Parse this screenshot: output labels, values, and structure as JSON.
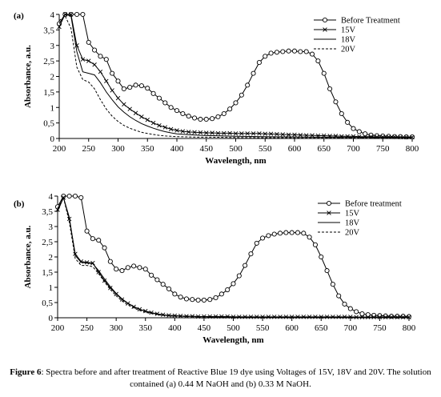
{
  "caption": {
    "label": "Figure 6",
    "text": ": Spectra before and after treatment of Reactive Blue 19 dye using Voltages of 15V, 18V and 20V. The solution contained (a) 0.44 M NaOH and (b) 0.33 M NaOH."
  },
  "chart_data": [
    {
      "type": "line",
      "panel_label": "(a)",
      "xlabel": "Wavelength, nm",
      "ylabel": "Absorbance, a.u.",
      "xlim": [
        200,
        800
      ],
      "ylim": [
        0,
        4
      ],
      "xticks": [
        200,
        250,
        300,
        350,
        400,
        450,
        500,
        550,
        600,
        650,
        700,
        750,
        800
      ],
      "yticks": [
        0,
        0.5,
        1,
        1.5,
        2,
        2.5,
        3,
        3.5,
        4
      ],
      "ytick_labels": [
        "0",
        "0,5",
        "1",
        "1,5",
        "2",
        "2,5",
        "3",
        "3,5",
        "4"
      ],
      "grid": false,
      "legend": "top-right",
      "series": [
        {
          "name": "Before Treatment",
          "style": "circle-markers",
          "x": [
            200,
            210,
            220,
            230,
            240,
            250,
            260,
            270,
            280,
            290,
            300,
            310,
            320,
            330,
            340,
            350,
            360,
            370,
            380,
            390,
            400,
            410,
            420,
            430,
            440,
            450,
            460,
            470,
            480,
            490,
            500,
            510,
            520,
            530,
            540,
            550,
            560,
            570,
            580,
            590,
            600,
            610,
            620,
            630,
            640,
            650,
            660,
            670,
            680,
            690,
            700,
            710,
            720,
            730,
            740,
            750,
            760,
            770,
            780,
            790,
            800
          ],
          "y": [
            3.7,
            4.0,
            4.0,
            4.0,
            4.0,
            3.1,
            2.85,
            2.65,
            2.55,
            2.1,
            1.85,
            1.6,
            1.65,
            1.72,
            1.7,
            1.62,
            1.45,
            1.3,
            1.15,
            1.0,
            0.9,
            0.8,
            0.72,
            0.66,
            0.62,
            0.62,
            0.64,
            0.7,
            0.8,
            0.95,
            1.15,
            1.4,
            1.72,
            2.1,
            2.45,
            2.65,
            2.75,
            2.78,
            2.8,
            2.82,
            2.82,
            2.8,
            2.8,
            2.72,
            2.5,
            2.1,
            1.6,
            1.18,
            0.8,
            0.52,
            0.32,
            0.22,
            0.15,
            0.11,
            0.09,
            0.08,
            0.07,
            0.06,
            0.06,
            0.05,
            0.05
          ]
        },
        {
          "name": "15V",
          "style": "x-markers",
          "x": [
            200,
            210,
            220,
            230,
            240,
            250,
            260,
            270,
            280,
            290,
            300,
            310,
            320,
            330,
            340,
            350,
            360,
            370,
            380,
            390,
            400,
            410,
            420,
            430,
            440,
            450,
            460,
            470,
            480,
            490,
            500,
            510,
            520,
            530,
            540,
            550,
            560,
            570,
            580,
            590,
            600,
            610,
            620,
            630,
            640,
            650,
            660,
            670,
            680,
            690,
            700,
            710,
            720,
            730,
            740,
            750,
            760,
            770,
            780,
            790,
            800
          ],
          "y": [
            3.6,
            4.0,
            4.0,
            3.0,
            2.55,
            2.5,
            2.38,
            2.15,
            1.85,
            1.55,
            1.3,
            1.1,
            0.95,
            0.82,
            0.7,
            0.6,
            0.5,
            0.42,
            0.36,
            0.3,
            0.26,
            0.23,
            0.21,
            0.2,
            0.19,
            0.18,
            0.18,
            0.17,
            0.17,
            0.17,
            0.16,
            0.16,
            0.16,
            0.16,
            0.16,
            0.15,
            0.15,
            0.14,
            0.13,
            0.12,
            0.12,
            0.11,
            0.1,
            0.1,
            0.09,
            0.09,
            0.08,
            0.08,
            0.07,
            0.07,
            0.07,
            0.06,
            0.06,
            0.06,
            0.05,
            0.05,
            0.05,
            0.05,
            0.04,
            0.04,
            0.04
          ]
        },
        {
          "name": "18V",
          "style": "solid",
          "x": [
            200,
            210,
            220,
            230,
            240,
            250,
            260,
            270,
            280,
            290,
            300,
            310,
            320,
            330,
            340,
            350,
            360,
            370,
            380,
            390,
            400,
            420,
            440,
            460,
            480,
            500,
            550,
            600,
            650,
            700,
            750,
            800
          ],
          "y": [
            3.7,
            4.0,
            3.95,
            2.8,
            2.15,
            2.1,
            2.05,
            1.8,
            1.5,
            1.25,
            1.02,
            0.85,
            0.7,
            0.58,
            0.48,
            0.4,
            0.33,
            0.27,
            0.22,
            0.18,
            0.15,
            0.12,
            0.1,
            0.09,
            0.08,
            0.07,
            0.06,
            0.05,
            0.04,
            0.04,
            0.03,
            0.03
          ]
        },
        {
          "name": "20V",
          "style": "dashed",
          "x": [
            200,
            210,
            220,
            230,
            240,
            250,
            260,
            270,
            280,
            290,
            300,
            310,
            320,
            330,
            340,
            350,
            360,
            370,
            380,
            390,
            400,
            420,
            440,
            460,
            500,
            600,
            700,
            800
          ],
          "y": [
            3.8,
            3.95,
            3.55,
            2.3,
            1.9,
            1.82,
            1.6,
            1.25,
            0.95,
            0.72,
            0.55,
            0.42,
            0.33,
            0.26,
            0.2,
            0.16,
            0.13,
            0.1,
            0.08,
            0.07,
            0.06,
            0.05,
            0.04,
            0.04,
            0.03,
            0.02,
            0.02,
            0.02
          ]
        }
      ]
    },
    {
      "type": "line",
      "panel_label": "(b)",
      "xlabel": "Wavelength, nm",
      "ylabel": "Absorbance, a.u.",
      "xlim": [
        200,
        800
      ],
      "ylim": [
        0,
        4
      ],
      "xticks": [
        200,
        250,
        300,
        350,
        400,
        450,
        500,
        550,
        600,
        650,
        700,
        750,
        800
      ],
      "yticks": [
        0,
        0.5,
        1,
        1.5,
        2,
        2.5,
        3,
        3.5,
        4
      ],
      "ytick_labels": [
        "0",
        "0,5",
        "1",
        "1,5",
        "2",
        "2,5",
        "3",
        "3,5",
        "4"
      ],
      "grid": false,
      "legend": "top-right",
      "series": [
        {
          "name": "Before treatment",
          "style": "circle-markers",
          "x": [
            200,
            210,
            220,
            230,
            240,
            250,
            260,
            270,
            280,
            290,
            300,
            310,
            320,
            330,
            340,
            350,
            360,
            370,
            380,
            390,
            400,
            410,
            420,
            430,
            440,
            450,
            460,
            470,
            480,
            490,
            500,
            510,
            520,
            530,
            540,
            550,
            560,
            570,
            580,
            590,
            600,
            610,
            620,
            630,
            640,
            650,
            660,
            670,
            680,
            690,
            700,
            710,
            720,
            730,
            740,
            750,
            760,
            770,
            780,
            790,
            800
          ],
          "y": [
            3.65,
            4.0,
            4.0,
            4.0,
            3.95,
            2.85,
            2.6,
            2.55,
            2.3,
            1.85,
            1.6,
            1.55,
            1.65,
            1.7,
            1.65,
            1.6,
            1.4,
            1.25,
            1.1,
            0.95,
            0.78,
            0.68,
            0.62,
            0.6,
            0.58,
            0.58,
            0.6,
            0.66,
            0.78,
            0.92,
            1.12,
            1.38,
            1.72,
            2.1,
            2.45,
            2.62,
            2.7,
            2.75,
            2.78,
            2.8,
            2.8,
            2.8,
            2.78,
            2.65,
            2.4,
            2.0,
            1.55,
            1.1,
            0.72,
            0.45,
            0.3,
            0.2,
            0.13,
            0.1,
            0.08,
            0.07,
            0.06,
            0.05,
            0.05,
            0.05,
            0.04
          ]
        },
        {
          "name": "15V",
          "style": "x-markers",
          "x": [
            200,
            210,
            220,
            230,
            240,
            250,
            260,
            270,
            280,
            290,
            300,
            310,
            320,
            330,
            340,
            350,
            360,
            370,
            380,
            390,
            400,
            410,
            420,
            430,
            440,
            450,
            460,
            470,
            480,
            490,
            500,
            510,
            520,
            530,
            540,
            550,
            560,
            570,
            580,
            590,
            600,
            610,
            620,
            630,
            640,
            650,
            660,
            670,
            680,
            690,
            700,
            710,
            720,
            730,
            740,
            750,
            760,
            770,
            780,
            790,
            800
          ],
          "y": [
            3.55,
            3.95,
            3.25,
            2.1,
            1.85,
            1.82,
            1.8,
            1.5,
            1.22,
            0.98,
            0.78,
            0.6,
            0.47,
            0.36,
            0.28,
            0.22,
            0.17,
            0.13,
            0.1,
            0.08,
            0.07,
            0.06,
            0.05,
            0.05,
            0.04,
            0.04,
            0.04,
            0.04,
            0.04,
            0.04,
            0.03,
            0.03,
            0.03,
            0.03,
            0.03,
            0.03,
            0.03,
            0.03,
            0.03,
            0.03,
            0.03,
            0.03,
            0.03,
            0.03,
            0.03,
            0.03,
            0.03,
            0.03,
            0.03,
            0.03,
            0.03,
            0.02,
            0.02,
            0.02,
            0.02,
            0.02,
            0.02,
            0.02,
            0.02,
            0.02,
            0.02
          ]
        },
        {
          "name": "18V",
          "style": "solid",
          "x": [
            200,
            210,
            220,
            230,
            240,
            250,
            260,
            270,
            280,
            290,
            300,
            310,
            320,
            330,
            340,
            350,
            360,
            370,
            380,
            390,
            400,
            420,
            440,
            460,
            500,
            600,
            700,
            800
          ],
          "y": [
            3.5,
            3.95,
            3.3,
            2.05,
            1.82,
            1.8,
            1.78,
            1.55,
            1.28,
            1.02,
            0.8,
            0.62,
            0.48,
            0.37,
            0.28,
            0.21,
            0.16,
            0.12,
            0.09,
            0.07,
            0.06,
            0.05,
            0.04,
            0.03,
            0.03,
            0.02,
            0.02,
            0.02
          ]
        },
        {
          "name": "20V",
          "style": "dashed",
          "x": [
            200,
            210,
            220,
            230,
            240,
            250,
            260,
            270,
            280,
            290,
            300,
            310,
            320,
            330,
            340,
            350,
            360,
            370,
            380,
            390,
            400,
            420,
            440,
            460,
            500,
            600,
            700,
            800
          ],
          "y": [
            3.6,
            3.95,
            3.15,
            1.95,
            1.72,
            1.72,
            1.68,
            1.45,
            1.18,
            0.93,
            0.72,
            0.55,
            0.42,
            0.32,
            0.24,
            0.18,
            0.14,
            0.1,
            0.08,
            0.06,
            0.05,
            0.04,
            0.03,
            0.03,
            0.02,
            0.02,
            0.02,
            0.02
          ]
        }
      ]
    }
  ]
}
